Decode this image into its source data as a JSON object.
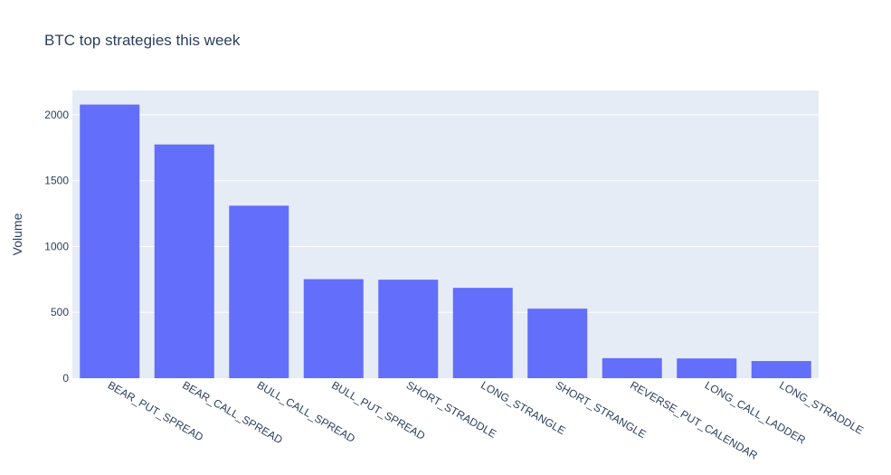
{
  "chart_data": {
    "type": "bar",
    "title": "BTC top strategies this week",
    "xlabel": "",
    "ylabel": "Volume",
    "categories": [
      "BEAR_PUT_SPREAD",
      "BEAR_CALL_SPREAD",
      "BULL_CALL_SPREAD",
      "BULL_PUT_SPREAD",
      "SHORT_STRADDLE",
      "LONG_STRANGLE",
      "SHORT_STRANGLE",
      "REVERSE_PUT_CALENDAR",
      "LONG_CALL_LADDER",
      "LONG_STRADDLE"
    ],
    "values": [
      2078,
      1775,
      1310,
      752,
      748,
      686,
      528,
      152,
      150,
      130
    ],
    "ylim": [
      0,
      2185
    ],
    "yticks": [
      0,
      500,
      1000,
      1500,
      2000
    ],
    "grid": true,
    "legend": "none",
    "colors": {
      "bar": "#636efa",
      "plot_bg": "#e5ecf6",
      "grid": "#ffffff",
      "text": "#2a3f5f"
    }
  }
}
